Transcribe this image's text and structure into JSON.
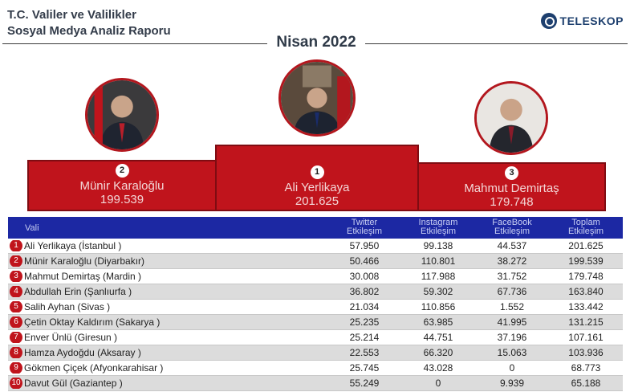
{
  "header": {
    "title_line1": "T.C. Valiler ve Valilikler",
    "title_line2": "Sosyal Medya Analiz Raporu",
    "period": "Nisan 2022",
    "brand": "TELESKOP"
  },
  "podium": [
    {
      "rank": "2",
      "name": "Münir Karaloğlu",
      "value": "199.539"
    },
    {
      "rank": "1",
      "name": "Ali Yerlikaya",
      "value": "201.625"
    },
    {
      "rank": "3",
      "name": "Mahmut Demirtaş",
      "value": "179.748"
    }
  ],
  "colors": {
    "accent": "#c0141c",
    "header_blue": "#1c28a3",
    "row_gray": "#dcdcdc"
  },
  "table": {
    "columns": [
      {
        "line1": "Vali",
        "line2": ""
      },
      {
        "line1": "Twitter",
        "line2": "Etkileşim"
      },
      {
        "line1": "Instagram",
        "line2": "Etkileşim"
      },
      {
        "line1": "FaceBook",
        "line2": "Etkileşim"
      },
      {
        "line1": "Toplam",
        "line2": "Etkileşim"
      }
    ],
    "rows": [
      {
        "rank": "1",
        "name": "Ali Yerlikaya (İstanbul )",
        "twitter": "57.950",
        "instagram": "99.138",
        "facebook": "44.537",
        "total": "201.625"
      },
      {
        "rank": "2",
        "name": "Münir Karaloğlu (Diyarbakır)",
        "twitter": "50.466",
        "instagram": "110.801",
        "facebook": "38.272",
        "total": "199.539"
      },
      {
        "rank": "3",
        "name": "Mahmut Demirtaş (Mardin )",
        "twitter": "30.008",
        "instagram": "117.988",
        "facebook": "31.752",
        "total": "179.748"
      },
      {
        "rank": "4",
        "name": "Abdullah Erin (Şanlıurfa )",
        "twitter": "36.802",
        "instagram": "59.302",
        "facebook": "67.736",
        "total": "163.840"
      },
      {
        "rank": "5",
        "name": "Salih Ayhan (Sivas )",
        "twitter": "21.034",
        "instagram": "110.856",
        "facebook": "1.552",
        "total": "133.442"
      },
      {
        "rank": "6",
        "name": "Çetin Oktay Kaldırım (Sakarya )",
        "twitter": "25.235",
        "instagram": "63.985",
        "facebook": "41.995",
        "total": "131.215"
      },
      {
        "rank": "7",
        "name": "Enver Ünlü (Giresun )",
        "twitter": "25.214",
        "instagram": "44.751",
        "facebook": "37.196",
        "total": "107.161"
      },
      {
        "rank": "8",
        "name": "Hamza Aydoğdu (Aksaray )",
        "twitter": "22.553",
        "instagram": "66.320",
        "facebook": "15.063",
        "total": "103.936"
      },
      {
        "rank": "9",
        "name": "Gökmen Çiçek (Afyonkarahisar )",
        "twitter": "25.745",
        "instagram": "43.028",
        "facebook": "0",
        "total": "68.773"
      },
      {
        "rank": "10",
        "name": "Davut Gül (Gaziantep )",
        "twitter": "55.249",
        "instagram": "0",
        "facebook": "9.939",
        "total": "65.188"
      }
    ]
  }
}
